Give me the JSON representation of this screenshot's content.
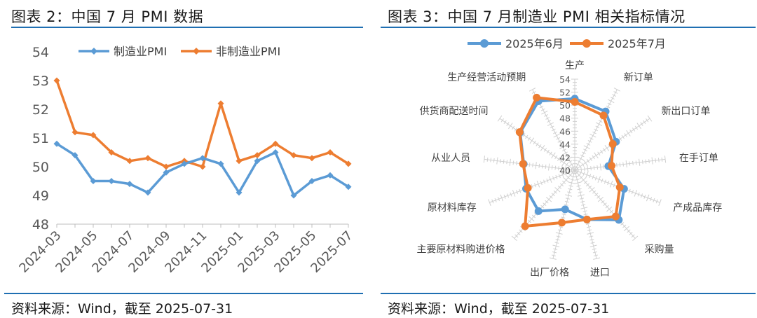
{
  "left_panel": {
    "title": "图表 2：中国 7 月 PMI 数据",
    "source": "资料来源：Wind，截至 2025-07-31"
  },
  "right_panel": {
    "title": "图表 3：中国 7 月制造业 PMI 相关指标情况",
    "source": "资料来源：Wind，截至 2025-07-31"
  },
  "colors": {
    "blue": "#5b9bd5",
    "orange": "#ed7d31",
    "rule": "#1f6fb2"
  },
  "chart_data": [
    {
      "type": "line",
      "x": [
        "2024-03",
        "2024-04",
        "2024-05",
        "2024-06",
        "2024-07",
        "2024-08",
        "2024-09",
        "2024-10",
        "2024-11",
        "2024-12",
        "2025-01",
        "2025-02",
        "2025-03",
        "2025-04",
        "2025-05",
        "2025-06",
        "2025-07"
      ],
      "x_tick_labels": [
        "2024-03",
        "2024-05",
        "2024-07",
        "2024-09",
        "2024-11",
        "2025-01",
        "2025-03",
        "2025-05",
        "2025-07"
      ],
      "y_ticks": [
        48,
        49,
        50,
        51,
        52,
        53,
        54
      ],
      "ylim": [
        48,
        54
      ],
      "legend_position": "top",
      "grid": false,
      "series": [
        {
          "name": "制造业PMI",
          "color": "#5b9bd5",
          "values": [
            50.8,
            50.4,
            49.5,
            49.5,
            49.4,
            49.1,
            49.8,
            50.1,
            50.3,
            50.1,
            49.1,
            50.2,
            50.5,
            49.0,
            49.5,
            49.7,
            49.3
          ]
        },
        {
          "name": "非制造业PMI",
          "color": "#ed7d31",
          "values": [
            53.0,
            51.2,
            51.1,
            50.5,
            50.2,
            50.3,
            50.0,
            50.2,
            50.0,
            52.2,
            50.2,
            50.4,
            50.8,
            50.4,
            50.3,
            50.5,
            50.1
          ]
        }
      ]
    },
    {
      "type": "radar",
      "categories": [
        "生产",
        "新订单",
        "新出口订单",
        "在手订单",
        "产成品库存",
        "采购量",
        "进口",
        "出厂价格",
        "主要原材料购进价格",
        "原材料库存",
        "从业人员",
        "供货商配送时间",
        "生产经营活动预期"
      ],
      "r_ticks": [
        40,
        42,
        44,
        46,
        48,
        50,
        52,
        54
      ],
      "rlim": [
        40,
        54
      ],
      "legend_position": "top",
      "series": [
        {
          "name": "2025年6月",
          "color": "#5b9bd5",
          "values": [
            51.0,
            50.2,
            47.7,
            45.2,
            48.1,
            50.2,
            47.8,
            46.2,
            48.4,
            48.0,
            47.9,
            50.2,
            52.0
          ]
        },
        {
          "name": "2025年7月",
          "color": "#ed7d31",
          "values": [
            50.5,
            49.5,
            47.1,
            45.7,
            47.4,
            49.5,
            47.8,
            48.3,
            51.5,
            47.7,
            48.0,
            50.3,
            52.6
          ]
        }
      ]
    }
  ]
}
